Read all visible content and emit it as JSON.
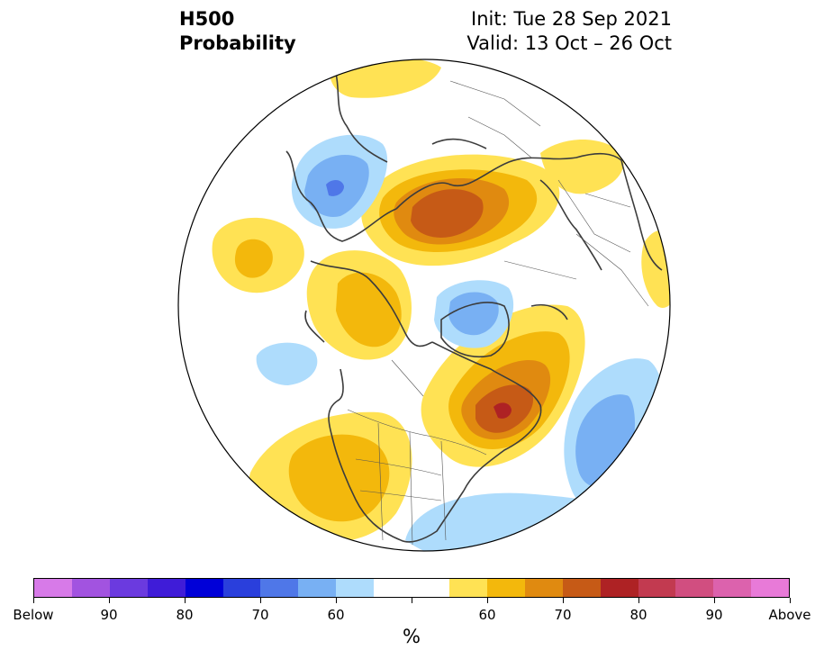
{
  "title": {
    "line1": "H500",
    "line2": "Probability"
  },
  "subtitle": {
    "init": "Init: Tue 28 Sep 2021",
    "valid": "Valid: 13 Oct – 26 Oct"
  },
  "colorbar": {
    "unit": "%",
    "colors": [
      "#d77ae8",
      "#a253e0",
      "#6b3adf",
      "#3f1cd8",
      "#0000d8",
      "#2a3fdc",
      "#4f77e8",
      "#78b0f3",
      "#aedcfc",
      "#ffffff",
      "#ffffff",
      "#ffe254",
      "#f3b80c",
      "#e08a10",
      "#c65a16",
      "#ae2224",
      "#c23a50",
      "#d14e80",
      "#dc62ad",
      "#e87ad8"
    ],
    "labels": [
      "Below",
      "90",
      "80",
      "70",
      "60",
      "60",
      "70",
      "80",
      "90",
      "Above"
    ]
  },
  "legend_colors": {
    "above_55": "#ffe254",
    "above_60": "#f3b80c",
    "above_65": "#e08a10",
    "above_70": "#c65a16",
    "above_75": "#ae2224",
    "below_55": "#aedcfc",
    "below_60": "#78b0f3",
    "below_65": "#4f77e8"
  }
}
